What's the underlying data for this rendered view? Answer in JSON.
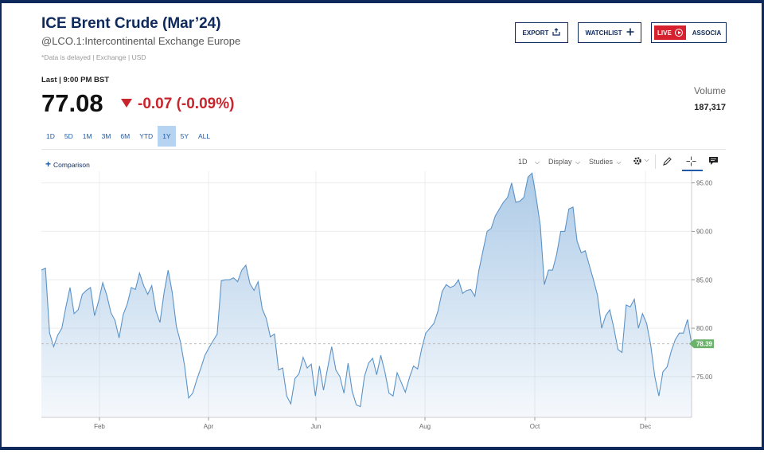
{
  "header": {
    "title": "ICE Brent Crude (Mar’24)",
    "subtitle": "@LCO.1:Intercontinental Exchange Europe",
    "delay_note": "*Data is delayed | Exchange | USD"
  },
  "buttons": {
    "export": "EXPORT",
    "watchlist": "WATCHLIST",
    "live": "LIVE",
    "associate": "ASSOCIA"
  },
  "quote": {
    "last_label": "Last | 9:00 PM BST",
    "price": "77.08",
    "change": "-0.07 (-0.09%)",
    "change_color": "#c9252c",
    "volume_label": "Volume",
    "volume_value": "187,317"
  },
  "ranges": [
    "1D",
    "5D",
    "1M",
    "3M",
    "6M",
    "YTD",
    "1Y",
    "5Y",
    "ALL"
  ],
  "active_range": "1Y",
  "toolbar": {
    "comparison": "Comparison",
    "interval": "1D",
    "display": "Display",
    "studies": "Studies",
    "icons": [
      "gear-icon",
      "pencil-icon",
      "crosshair-icon",
      "comment-icon"
    ]
  },
  "chart_data": {
    "type": "area",
    "x_labels": [
      "Feb",
      "Apr",
      "Jun",
      "Aug",
      "Oct",
      "Dec"
    ],
    "y_ticks": [
      "95.00",
      "90.00",
      "85.00",
      "80.00",
      "75.00"
    ],
    "ylim": [
      70.8,
      96.2
    ],
    "current_value_label": "78.39",
    "reference_value": 78.39,
    "line_color": "#5b93c7",
    "fill_color": "#a9c8e6",
    "badge_color": "#6bb26b",
    "grid": true,
    "series": [
      {
        "values": [
          86.0,
          86.2,
          79.5,
          78.1,
          79.3,
          80.0,
          82.2,
          84.2,
          81.5,
          81.9,
          83.5,
          83.9,
          84.2,
          81.3,
          82.8,
          84.7,
          83.4,
          81.6,
          80.8,
          79.0,
          81.4,
          82.5,
          84.2,
          84.0,
          85.7,
          84.4,
          83.5,
          84.4,
          81.8,
          80.6,
          83.7,
          86.0,
          83.7,
          80.2,
          78.6,
          76.2,
          72.8,
          73.3,
          74.7,
          75.9,
          77.2,
          78.0,
          78.7,
          79.4,
          84.9,
          85.0,
          85.0,
          85.2,
          84.8,
          86.0,
          86.5,
          84.6,
          83.9,
          84.8,
          82.0,
          81.0,
          79.1,
          79.4,
          75.7,
          75.9,
          73.0,
          72.2,
          74.8,
          75.3,
          77.0,
          75.9,
          76.3,
          73.0,
          76.1,
          73.6,
          75.9,
          78.1,
          75.7,
          75.0,
          73.3,
          76.4,
          73.5,
          72.1,
          71.9,
          75.0,
          76.4,
          76.9,
          75.2,
          77.2,
          75.5,
          73.3,
          73.0,
          75.4,
          74.4,
          73.4,
          74.9,
          76.1,
          75.8,
          77.9,
          79.5,
          80.0,
          80.5,
          81.8,
          83.8,
          84.5,
          84.2,
          84.4,
          85.0,
          83.6,
          83.9,
          84.0,
          83.3,
          86.0,
          88.0,
          90.0,
          90.3,
          91.6,
          92.3,
          93.0,
          93.5,
          95.0,
          93.0,
          93.1,
          93.5,
          95.6,
          96.0,
          93.5,
          90.6,
          84.5,
          86.0,
          86.0,
          87.6,
          90.0,
          90.0,
          92.3,
          92.5,
          89.0,
          87.8,
          88.0,
          86.5,
          85.0,
          83.4,
          80.0,
          81.3,
          81.9,
          80.0,
          77.8,
          77.5,
          82.4,
          82.2,
          83.0,
          80.0,
          81.5,
          80.5,
          78.3,
          75.0,
          73.0,
          75.5,
          76.0,
          77.6,
          78.8,
          79.5,
          79.5,
          80.9,
          78.39
        ]
      }
    ]
  }
}
